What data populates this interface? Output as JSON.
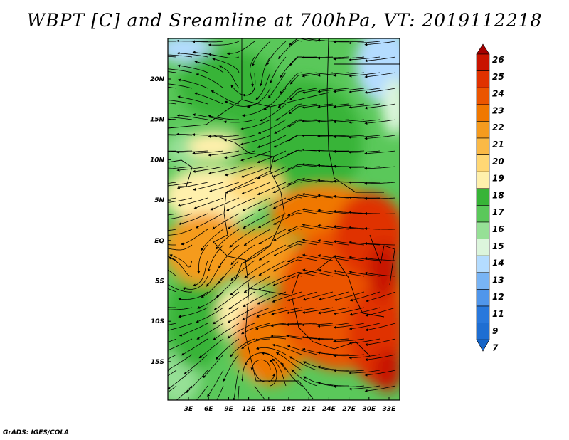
{
  "title": "WBPT [C] and Sreamline at 700hPa, VT: 2019112218",
  "footer": "GrADS: IGES/COLA",
  "map": {
    "lat_labels": [
      "20N",
      "15N",
      "10N",
      "5N",
      "EQ",
      "5S",
      "10S",
      "15S"
    ],
    "lon_labels": [
      "3E",
      "6E",
      "9E",
      "12E",
      "15E",
      "18E",
      "21E",
      "24E",
      "27E",
      "30E",
      "33E"
    ],
    "lat_range": [
      -20,
      25
    ],
    "lon_range": [
      0,
      35
    ],
    "variable": "Wet-bulb potential temperature",
    "overlay": "Streamlines"
  },
  "colorbar": {
    "levels": [
      "26",
      "25",
      "24",
      "23",
      "22",
      "21",
      "20",
      "19",
      "18",
      "17",
      "16",
      "15",
      "14",
      "13",
      "12",
      "11",
      "9",
      "7"
    ],
    "colors": [
      "#a50000",
      "#c81400",
      "#e03200",
      "#eb5500",
      "#f07800",
      "#f59b1e",
      "#fab946",
      "#ffd774",
      "#fff0ac",
      "#37b437",
      "#5ac85a",
      "#96e096",
      "#dcf5dc",
      "#b4dcff",
      "#78b4f5",
      "#5096eb",
      "#2878dc",
      "#1e6ed2",
      "#1464c8"
    ]
  }
}
